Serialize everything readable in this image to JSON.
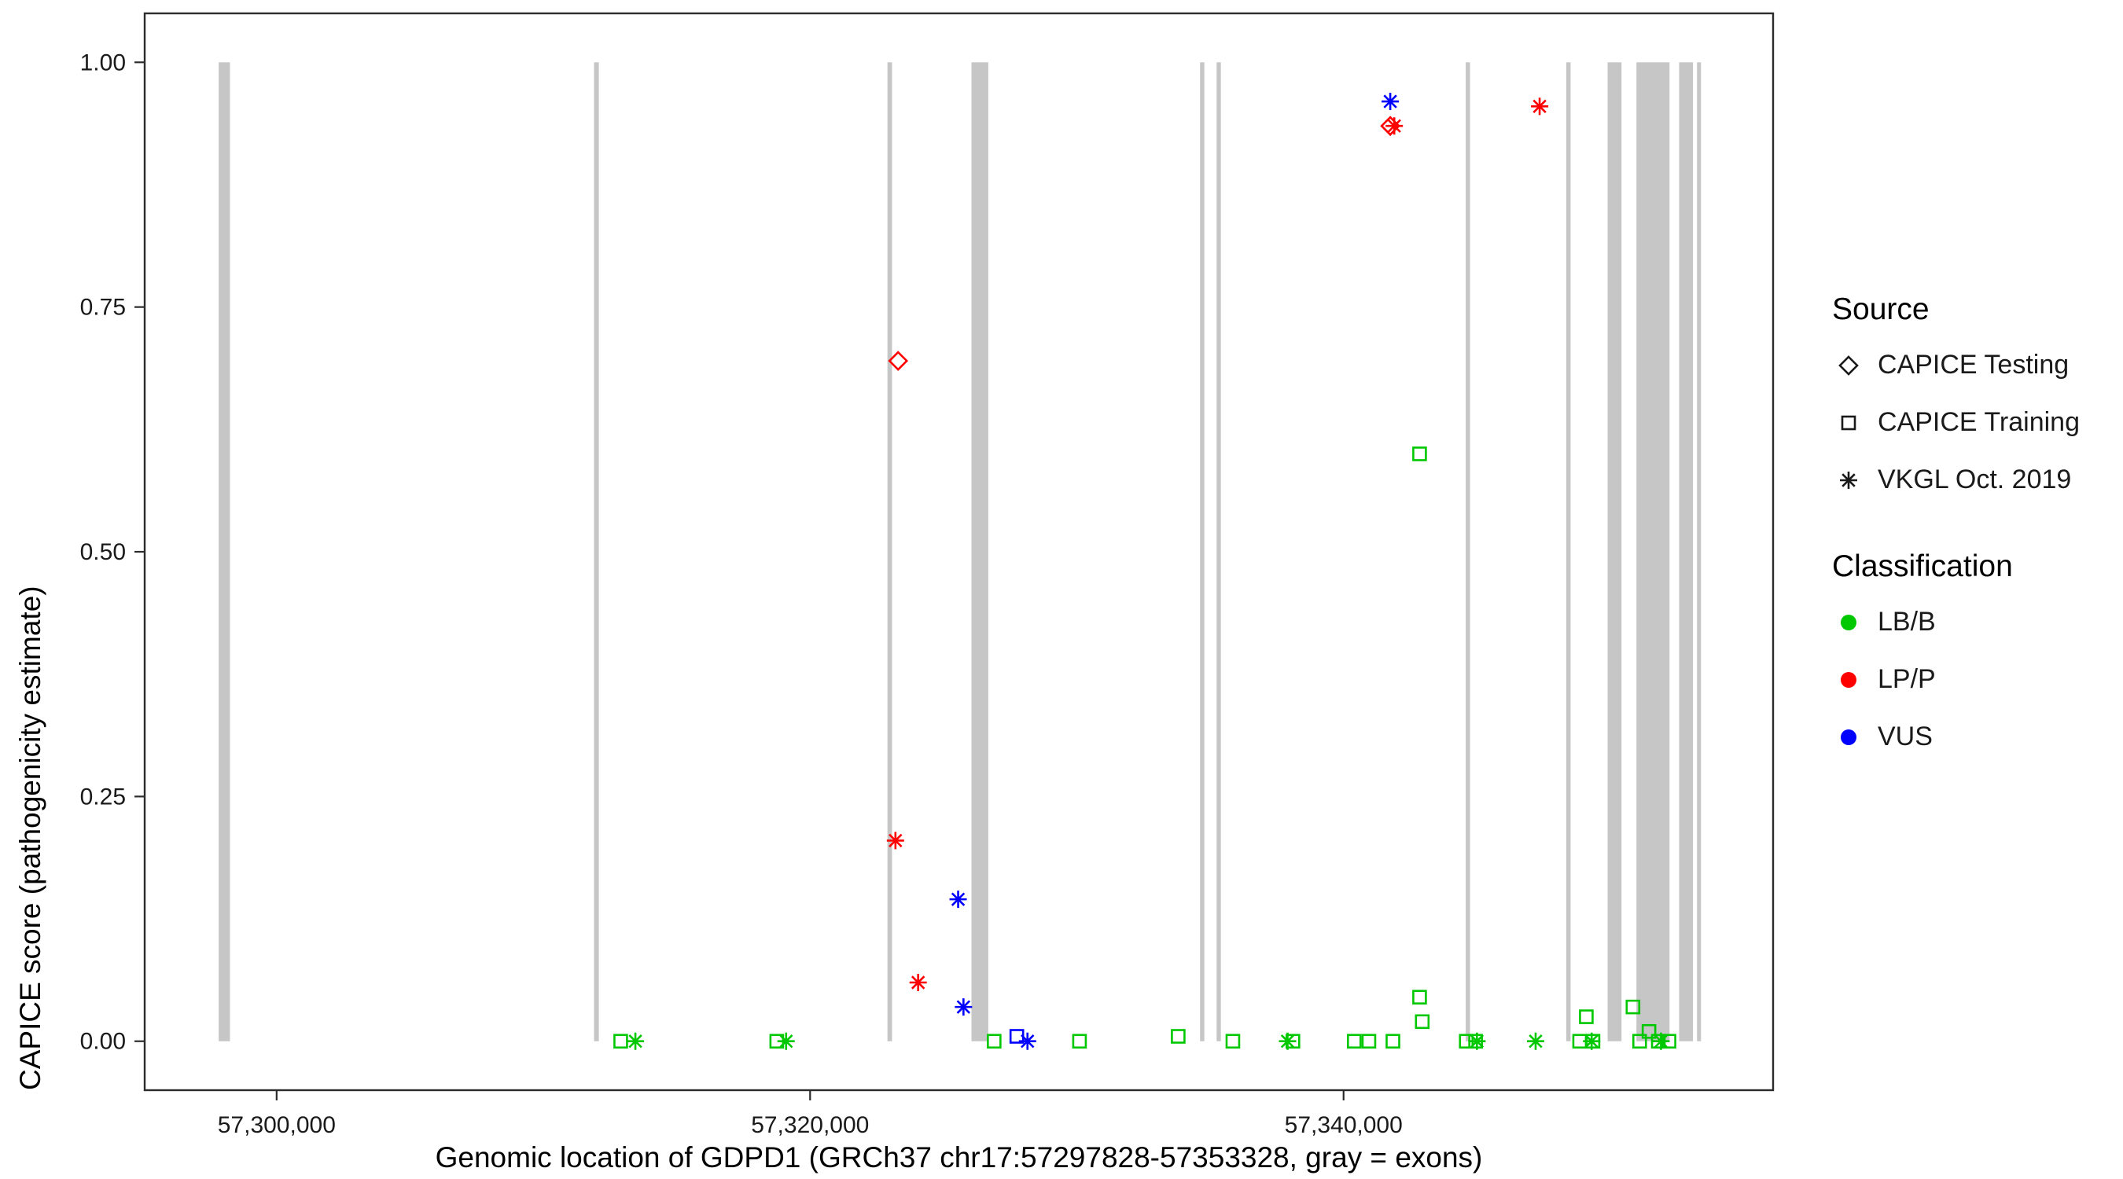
{
  "chart_data": {
    "type": "scatter",
    "xlabel": "Genomic location of GDPD1 (GRCh37 chr17:57297828-57353328, gray = exons)",
    "ylabel": "CAPICE score (pathogenicity estimate)",
    "xlim": [
      57295053,
      57356103
    ],
    "ylim": [
      -0.05,
      1.05
    ],
    "grid": "off",
    "x_ticks": [
      {
        "value": 57300000,
        "label": "57,300,000"
      },
      {
        "value": 57320000,
        "label": "57,320,000"
      },
      {
        "value": 57340000,
        "label": "57,340,000"
      }
    ],
    "y_ticks": [
      {
        "value": 0.0,
        "label": "0.00"
      },
      {
        "value": 0.25,
        "label": "0.25"
      },
      {
        "value": 0.5,
        "label": "0.50"
      },
      {
        "value": 0.75,
        "label": "0.75"
      },
      {
        "value": 1.0,
        "label": "1.00"
      }
    ],
    "colors": {
      "LB/B": "#00C800",
      "LP/P": "#FF0000",
      "VUS": "#0000FF",
      "exon": "#C6C6C6",
      "axis": "#2b2b2b"
    },
    "exons": [
      {
        "start": 57297828,
        "end": 57298250
      },
      {
        "start": 57311900,
        "end": 57312080
      },
      {
        "start": 57322900,
        "end": 57323070
      },
      {
        "start": 57326050,
        "end": 57326680
      },
      {
        "start": 57334620,
        "end": 57334780
      },
      {
        "start": 57335240,
        "end": 57335400
      },
      {
        "start": 57344580,
        "end": 57344740
      },
      {
        "start": 57348350,
        "end": 57348510
      },
      {
        "start": 57349900,
        "end": 57350420
      },
      {
        "start": 57350980,
        "end": 57352220
      },
      {
        "start": 57352580,
        "end": 57353100
      },
      {
        "start": 57353250,
        "end": 57353400
      }
    ],
    "points": [
      {
        "x": 57323300,
        "y": 0.695,
        "shape": "diamond",
        "class": "LP/P"
      },
      {
        "x": 57323200,
        "y": 0.205,
        "shape": "asterisk",
        "class": "LP/P"
      },
      {
        "x": 57324050,
        "y": 0.06,
        "shape": "asterisk",
        "class": "LP/P"
      },
      {
        "x": 57325550,
        "y": 0.145,
        "shape": "asterisk",
        "class": "VUS"
      },
      {
        "x": 57325750,
        "y": 0.035,
        "shape": "asterisk",
        "class": "VUS"
      },
      {
        "x": 57341750,
        "y": 0.96,
        "shape": "asterisk",
        "class": "VUS"
      },
      {
        "x": 57341750,
        "y": 0.935,
        "shape": "diamond",
        "class": "LP/P"
      },
      {
        "x": 57341900,
        "y": 0.935,
        "shape": "asterisk",
        "class": "LP/P"
      },
      {
        "x": 57347350,
        "y": 0.955,
        "shape": "asterisk",
        "class": "LP/P"
      },
      {
        "x": 57342850,
        "y": 0.6,
        "shape": "square",
        "class": "LB/B"
      },
      {
        "x": 57312900,
        "y": 0.0,
        "shape": "square",
        "class": "LB/B"
      },
      {
        "x": 57313450,
        "y": 0.0,
        "shape": "asterisk",
        "class": "LB/B"
      },
      {
        "x": 57318750,
        "y": 0.0,
        "shape": "square",
        "class": "LB/B"
      },
      {
        "x": 57319100,
        "y": 0.0,
        "shape": "asterisk",
        "class": "LB/B"
      },
      {
        "x": 57326900,
        "y": 0.0,
        "shape": "square",
        "class": "LB/B"
      },
      {
        "x": 57327750,
        "y": 0.005,
        "shape": "square",
        "class": "VUS"
      },
      {
        "x": 57328150,
        "y": 0.0,
        "shape": "asterisk",
        "class": "VUS"
      },
      {
        "x": 57330100,
        "y": 0.0,
        "shape": "square",
        "class": "LB/B"
      },
      {
        "x": 57333800,
        "y": 0.005,
        "shape": "square",
        "class": "LB/B"
      },
      {
        "x": 57335850,
        "y": 0.0,
        "shape": "square",
        "class": "LB/B"
      },
      {
        "x": 57337900,
        "y": 0.0,
        "shape": "asterisk",
        "class": "LB/B"
      },
      {
        "x": 57338100,
        "y": 0.0,
        "shape": "square",
        "class": "LB/B"
      },
      {
        "x": 57340400,
        "y": 0.0,
        "shape": "square",
        "class": "LB/B"
      },
      {
        "x": 57340950,
        "y": 0.0,
        "shape": "square",
        "class": "LB/B"
      },
      {
        "x": 57341850,
        "y": 0.0,
        "shape": "square",
        "class": "LB/B"
      },
      {
        "x": 57342850,
        "y": 0.045,
        "shape": "square",
        "class": "LB/B"
      },
      {
        "x": 57342950,
        "y": 0.02,
        "shape": "square",
        "class": "LB/B"
      },
      {
        "x": 57344600,
        "y": 0.0,
        "shape": "square",
        "class": "LB/B"
      },
      {
        "x": 57344950,
        "y": 0.0,
        "shape": "square",
        "class": "LB/B"
      },
      {
        "x": 57345000,
        "y": 0.0,
        "shape": "asterisk",
        "class": "LB/B"
      },
      {
        "x": 57347200,
        "y": 0.0,
        "shape": "asterisk",
        "class": "LB/B"
      },
      {
        "x": 57348850,
        "y": 0.0,
        "shape": "square",
        "class": "LB/B"
      },
      {
        "x": 57349100,
        "y": 0.025,
        "shape": "square",
        "class": "LB/B"
      },
      {
        "x": 57349300,
        "y": 0.0,
        "shape": "asterisk",
        "class": "LB/B"
      },
      {
        "x": 57349350,
        "y": 0.0,
        "shape": "square",
        "class": "LB/B"
      },
      {
        "x": 57350850,
        "y": 0.035,
        "shape": "square",
        "class": "LB/B"
      },
      {
        "x": 57351100,
        "y": 0.0,
        "shape": "square",
        "class": "LB/B"
      },
      {
        "x": 57351450,
        "y": 0.01,
        "shape": "square",
        "class": "LB/B"
      },
      {
        "x": 57351800,
        "y": 0.0,
        "shape": "square",
        "class": "LB/B"
      },
      {
        "x": 57351900,
        "y": 0.0,
        "shape": "asterisk",
        "class": "LB/B"
      },
      {
        "x": 57352200,
        "y": 0.0,
        "shape": "square",
        "class": "LB/B"
      }
    ],
    "legend": {
      "source": {
        "title": "Source",
        "items": [
          {
            "shape": "diamond",
            "label": "CAPICE Testing"
          },
          {
            "shape": "square",
            "label": "CAPICE Training"
          },
          {
            "shape": "asterisk",
            "label": "VKGL Oct. 2019"
          }
        ]
      },
      "classification": {
        "title": "Classification",
        "items": [
          {
            "color": "#00C800",
            "label": "LB/B"
          },
          {
            "color": "#FF0000",
            "label": "LP/P"
          },
          {
            "color": "#0000FF",
            "label": "VUS"
          }
        ]
      }
    }
  }
}
